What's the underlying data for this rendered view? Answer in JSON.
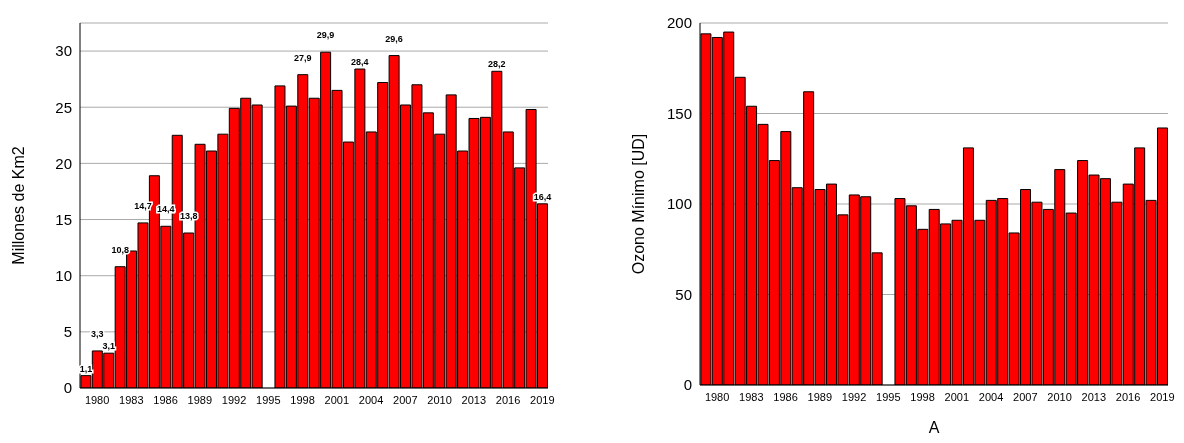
{
  "chart_data": [
    {
      "type": "bar",
      "ylabel": "Millones de Km2",
      "categories": [
        null,
        "1980",
        null,
        null,
        "1983",
        null,
        null,
        "1986",
        null,
        null,
        "1989",
        null,
        null,
        "1992",
        null,
        null,
        "1995",
        null,
        null,
        "1998",
        null,
        null,
        "2001",
        null,
        null,
        "2004",
        null,
        null,
        "2007",
        null,
        null,
        "2010",
        null,
        null,
        "2013",
        null,
        null,
        "2016",
        null,
        null,
        "2019"
      ],
      "values": [
        1.1,
        3.3,
        3.1,
        10.8,
        12.2,
        14.7,
        18.9,
        14.4,
        22.5,
        13.8,
        21.7,
        21.1,
        22.6,
        24.9,
        25.8,
        25.2,
        null,
        26.9,
        25.1,
        27.9,
        25.8,
        29.9,
        26.5,
        21.9,
        28.4,
        22.8,
        27.2,
        29.6,
        25.2,
        27.0,
        24.5,
        22.6,
        26.1,
        21.1,
        24.0,
        24.1,
        28.2,
        22.8,
        19.6,
        24.8,
        16.4
      ],
      "value_labels": [
        "1,1",
        "3,3",
        "3,1",
        "10,8",
        null,
        "14,7",
        null,
        "14,4",
        null,
        "13,8",
        null,
        null,
        null,
        null,
        null,
        null,
        null,
        null,
        null,
        "27,9",
        null,
        "29,9",
        null,
        null,
        "28,4",
        null,
        null,
        "29,6",
        null,
        null,
        null,
        null,
        null,
        null,
        null,
        null,
        "28,2",
        null,
        null,
        null,
        "16,4"
      ],
      "color": "#ff0000",
      "ylim": [
        0,
        32.5
      ],
      "yticks": [
        0,
        5,
        10,
        15,
        20,
        25,
        30
      ],
      "grid": "y"
    },
    {
      "type": "bar",
      "xlabel": "A",
      "ylabel": "Ozono Mínimo [UD]",
      "categories": [
        null,
        "1980",
        null,
        null,
        "1983",
        null,
        null,
        "1986",
        null,
        null,
        "1989",
        null,
        null,
        "1992",
        null,
        null,
        "1995",
        null,
        null,
        "1998",
        null,
        null,
        "2001",
        null,
        null,
        "2004",
        null,
        null,
        "2007",
        null,
        null,
        "2010",
        null,
        null,
        "2013",
        null,
        null,
        "2016",
        null,
        null,
        "2019"
      ],
      "values": [
        194,
        192,
        195,
        170,
        154,
        144,
        124,
        140,
        109,
        162,
        108,
        111,
        94,
        105,
        104,
        73,
        null,
        103,
        99,
        86,
        97,
        89,
        91,
        131,
        91,
        102,
        103,
        84,
        108,
        101,
        97,
        119,
        95,
        124,
        116,
        114,
        101,
        111,
        131,
        102,
        142
      ],
      "color": "#ff0000",
      "ylim": [
        0,
        200
      ],
      "yticks": [
        0,
        50,
        100,
        150,
        200
      ],
      "grid": "y"
    }
  ]
}
